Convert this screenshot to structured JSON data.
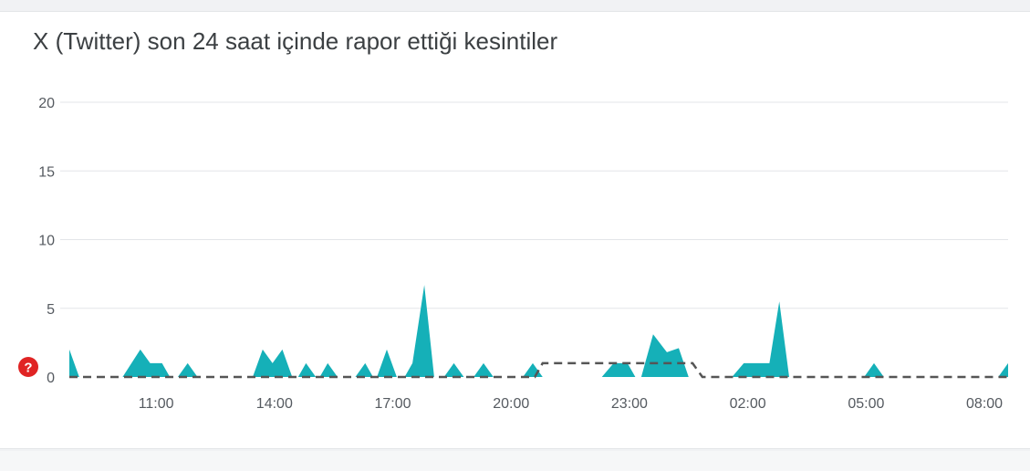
{
  "card": {
    "title": "X (Twitter) son 24 saat içinde rapor ettiği kesintiler"
  },
  "chart_data": {
    "type": "area",
    "title": "X (Twitter) son 24 saat içinde rapor ettiği kesintiler",
    "xlabel": "",
    "ylabel": "",
    "ylim": [
      0,
      20
    ],
    "yticks": [
      "0",
      "5",
      "10",
      "15",
      "20"
    ],
    "xticks": [
      {
        "label": "11:00",
        "hour": 11
      },
      {
        "label": "14:00",
        "hour": 14
      },
      {
        "label": "17:00",
        "hour": 17
      },
      {
        "label": "20:00",
        "hour": 20
      },
      {
        "label": "23:00",
        "hour": 23
      },
      {
        "label": "02:00",
        "hour": 26
      },
      {
        "label": "05:00",
        "hour": 29
      },
      {
        "label": "08:00",
        "hour": 32
      }
    ],
    "x_range_hours": [
      8.8,
      32.6
    ],
    "grid": true,
    "legend": "none",
    "colors": {
      "reports": "#15b0b8",
      "baseline": "#555555",
      "grid": "#e3e5e8",
      "alert": "#e02424"
    },
    "series": [
      {
        "type": "area",
        "points": [
          [
            8.8,
            2
          ],
          [
            9.05,
            0
          ],
          [
            10.15,
            0
          ],
          [
            10.6,
            2
          ],
          [
            10.85,
            1
          ],
          [
            11.15,
            1
          ],
          [
            11.35,
            0
          ],
          [
            11.55,
            0
          ],
          [
            11.8,
            1
          ],
          [
            12.05,
            0
          ],
          [
            13.45,
            0
          ],
          [
            13.7,
            2
          ],
          [
            13.95,
            1
          ],
          [
            14.2,
            2
          ],
          [
            14.45,
            0
          ],
          [
            14.6,
            0
          ],
          [
            14.8,
            1
          ],
          [
            15.05,
            0
          ],
          [
            15.15,
            0
          ],
          [
            15.35,
            1
          ],
          [
            15.6,
            0
          ],
          [
            16.05,
            0
          ],
          [
            16.3,
            1
          ],
          [
            16.5,
            0
          ],
          [
            16.6,
            0
          ],
          [
            16.85,
            2
          ],
          [
            17.1,
            0
          ],
          [
            17.3,
            0
          ],
          [
            17.5,
            1
          ],
          [
            17.8,
            6.7
          ],
          [
            18.05,
            0
          ],
          [
            18.3,
            0
          ],
          [
            18.55,
            1
          ],
          [
            18.8,
            0
          ],
          [
            19.05,
            0
          ],
          [
            19.3,
            1
          ],
          [
            19.55,
            0
          ],
          [
            20.3,
            0
          ],
          [
            20.55,
            1
          ],
          [
            20.8,
            0
          ],
          [
            22.3,
            0
          ],
          [
            22.6,
            1
          ],
          [
            22.95,
            1
          ],
          [
            23.15,
            0
          ],
          [
            23.3,
            0
          ],
          [
            23.6,
            3.1
          ],
          [
            23.95,
            1.8
          ],
          [
            24.25,
            2.1
          ],
          [
            24.5,
            0
          ],
          [
            25.6,
            0
          ],
          [
            25.9,
            1
          ],
          [
            26.55,
            1
          ],
          [
            26.8,
            5.5
          ],
          [
            27.05,
            0
          ],
          [
            28.95,
            0
          ],
          [
            29.2,
            1
          ],
          [
            29.45,
            0
          ],
          [
            32.35,
            0
          ],
          [
            32.6,
            1
          ]
        ]
      },
      {
        "type": "line",
        "style": "dashed",
        "points": [
          [
            8.8,
            0
          ],
          [
            20.6,
            0
          ],
          [
            20.8,
            1
          ],
          [
            24.6,
            1
          ],
          [
            24.85,
            0
          ],
          [
            32.6,
            0
          ]
        ]
      }
    ]
  }
}
